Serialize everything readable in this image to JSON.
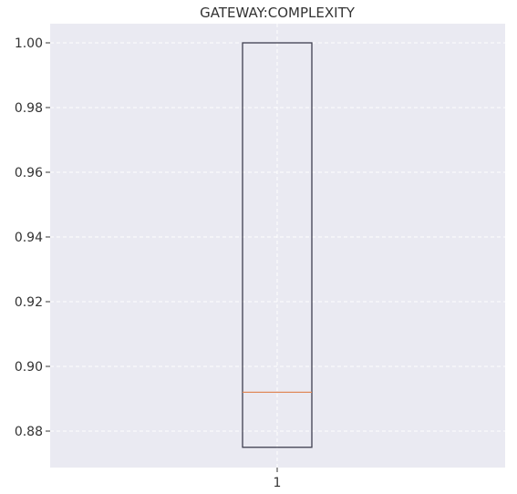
{
  "chart_data": {
    "type": "box",
    "title": "GATEWAY:COMPLEXITY",
    "xlabel": "",
    "ylabel": "",
    "categories": [
      "1"
    ],
    "boxes": [
      {
        "category": "1",
        "min": 0.875,
        "q1": 0.875,
        "median": 0.892,
        "q3": 1.0,
        "max": 1.0
      }
    ],
    "ylim": [
      0.869,
      1.0
    ]
  },
  "y_ticks": [
    "0.88",
    "0.90",
    "0.92",
    "0.94",
    "0.96",
    "0.98",
    "1.00"
  ],
  "x_ticks": [
    "1"
  ],
  "colors": {
    "plot_background": "#eaeaf2",
    "grid": "#ffffff",
    "box_edge": "#3f3f4f",
    "median": "#e08a5b",
    "text": "#333333"
  }
}
